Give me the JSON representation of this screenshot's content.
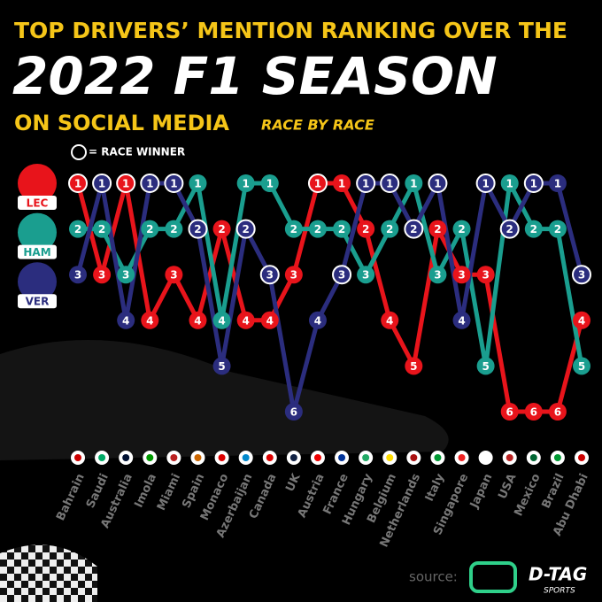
{
  "chart_data": {
    "type": "line",
    "title": "TOP DRIVERS’ MENTION RANKING OVER THE",
    "subtitle": "2022 F1 SEASON",
    "subtitle2": "ON SOCIAL MEDIA",
    "subtitle3": "RACE BY RACE",
    "legend_note": "= RACE WINNER",
    "source": "source:",
    "brand": "D-TAG",
    "brand_sub": "SPORTS",
    "categories": [
      "Bahrain",
      "Saudi",
      "Australia",
      "Imola",
      "Miami",
      "Spain",
      "Monaco",
      "Azerbaijan",
      "Canada",
      "UK",
      "Austria",
      "France",
      "Hungary",
      "Belgium",
      "Netherlands",
      "Italy",
      "Singapore",
      "Japan",
      "USA",
      "Mexico",
      "Brazil",
      "Abu Dhabi"
    ],
    "ylim": [
      6,
      1
    ],
    "series": [
      {
        "name": "LEC",
        "color": "#e8141b",
        "values": [
          1,
          3,
          1,
          4,
          3,
          4,
          2,
          4,
          4,
          3,
          1,
          1,
          2,
          4,
          5,
          2,
          3,
          3,
          6,
          6,
          6,
          4
        ],
        "winner": [
          true,
          false,
          true,
          false,
          false,
          false,
          false,
          false,
          false,
          false,
          true,
          false,
          false,
          false,
          false,
          false,
          false,
          false,
          false,
          false,
          false,
          false
        ]
      },
      {
        "name": "HAM",
        "color": "#1a9e8f",
        "values": [
          2,
          2,
          3,
          2,
          2,
          1,
          4,
          1,
          1,
          2,
          2,
          2,
          3,
          2,
          1,
          3,
          2,
          5,
          1,
          2,
          2,
          5
        ],
        "winner": [
          false,
          false,
          false,
          false,
          false,
          false,
          false,
          false,
          false,
          false,
          false,
          false,
          false,
          false,
          false,
          false,
          false,
          false,
          false,
          false,
          false,
          false
        ]
      },
      {
        "name": "VER",
        "color": "#2b2d7e",
        "values": [
          3,
          1,
          4,
          1,
          1,
          2,
          5,
          2,
          3,
          6,
          4,
          3,
          1,
          1,
          2,
          1,
          4,
          1,
          2,
          1,
          1,
          3
        ],
        "winner": [
          false,
          true,
          false,
          true,
          true,
          true,
          false,
          true,
          true,
          false,
          false,
          true,
          true,
          true,
          true,
          true,
          false,
          true,
          true,
          true,
          false,
          true
        ]
      }
    ]
  }
}
